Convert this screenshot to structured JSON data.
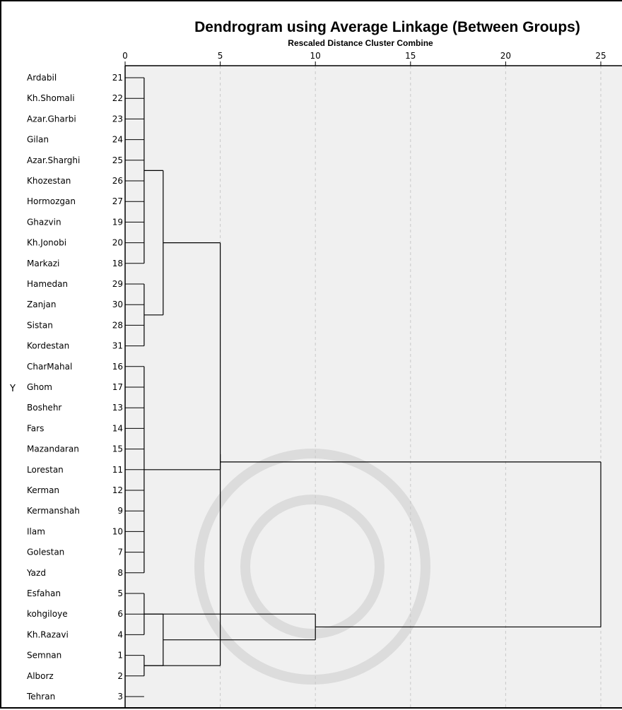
{
  "chart_data": {
    "type": "dendrogram",
    "title": "Dendrogram using Average Linkage (Between Groups)",
    "subtitle": "Rescaled Distance Cluster Combine",
    "ylabel": "Y",
    "xlim": [
      0,
      25
    ],
    "x_ticks": [
      0,
      5,
      10,
      15,
      20,
      25
    ],
    "grid": true,
    "leaves": [
      {
        "label": "Ardabil",
        "case": 21
      },
      {
        "label": "Kh.Shomali",
        "case": 22
      },
      {
        "label": "Azar.Gharbi",
        "case": 23
      },
      {
        "label": "Gilan",
        "case": 24
      },
      {
        "label": "Azar.Sharghi",
        "case": 25
      },
      {
        "label": "Khozestan",
        "case": 26
      },
      {
        "label": "Hormozgan",
        "case": 27
      },
      {
        "label": "Ghazvin",
        "case": 19
      },
      {
        "label": "Kh.Jonobi",
        "case": 20
      },
      {
        "label": "Markazi",
        "case": 18
      },
      {
        "label": "Hamedan",
        "case": 29
      },
      {
        "label": "Zanjan",
        "case": 30
      },
      {
        "label": "Sistan",
        "case": 28
      },
      {
        "label": "Kordestan",
        "case": 31
      },
      {
        "label": "CharMahal",
        "case": 16
      },
      {
        "label": "Ghom",
        "case": 17
      },
      {
        "label": "Boshehr",
        "case": 13
      },
      {
        "label": "Fars",
        "case": 14
      },
      {
        "label": "Mazandaran",
        "case": 15
      },
      {
        "label": "Lorestan",
        "case": 11
      },
      {
        "label": "Kerman",
        "case": 12
      },
      {
        "label": "Kermanshah",
        "case": 9
      },
      {
        "label": "Ilam",
        "case": 10
      },
      {
        "label": "Golestan",
        "case": 7
      },
      {
        "label": "Yazd",
        "case": 8
      },
      {
        "label": "Esfahan",
        "case": 5
      },
      {
        "label": "kohgiloye",
        "case": 6
      },
      {
        "label": "Kh.Razavi",
        "case": 4
      },
      {
        "label": "Semnan",
        "case": 1
      },
      {
        "label": "Alborz",
        "case": 2
      },
      {
        "label": "Tehran",
        "case": 3
      }
    ],
    "merges": [
      {
        "members": [
          0,
          9
        ],
        "height": 1
      },
      {
        "members": [
          10,
          13
        ],
        "height": 1
      },
      {
        "members": [
          14,
          24
        ],
        "height": 1
      },
      {
        "members": [
          25,
          27
        ],
        "height": 1
      },
      {
        "members": [
          28,
          29
        ],
        "height": 1
      },
      {
        "from": [
          0,
          1
        ],
        "height": 2
      },
      {
        "from": [
          5,
          4
        ],
        "height": 5
      },
      {
        "from": [
          2,
          6
        ],
        "height": 5
      },
      {
        "from": [
          4,
          3
        ],
        "height": 2
      },
      {
        "from": [
          3,
          8
        ],
        "height": 10
      },
      {
        "from": [
          7,
          9
        ],
        "height": 25
      }
    ]
  }
}
